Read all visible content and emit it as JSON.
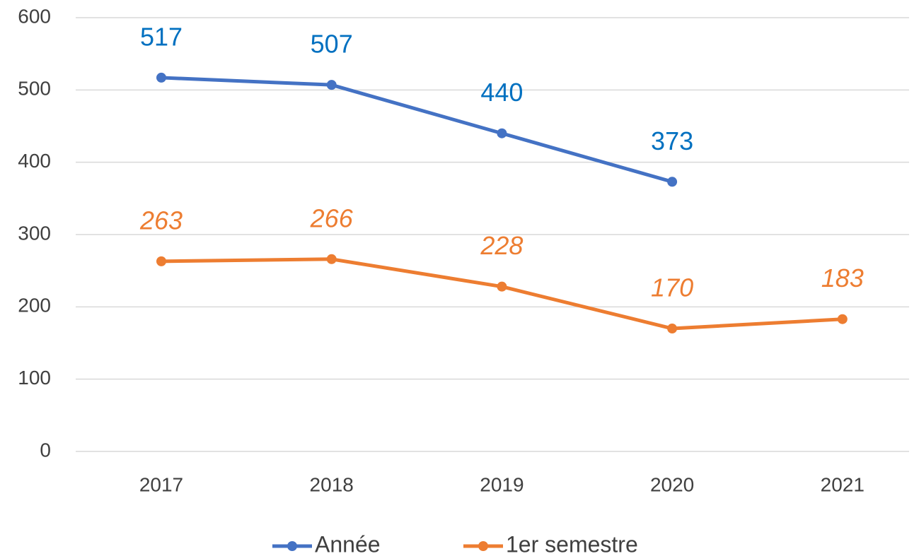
{
  "chart_data": {
    "type": "line",
    "categories": [
      "2017",
      "2018",
      "2019",
      "2020",
      "2021"
    ],
    "series": [
      {
        "name": "Année",
        "color": "#4472c4",
        "label_color": "#0070c0",
        "values": [
          517,
          507,
          440,
          373,
          null
        ]
      },
      {
        "name": "1er semestre",
        "color": "#ed7d31",
        "label_color": "#ed7d31",
        "label_style": "italic",
        "values": [
          263,
          266,
          228,
          170,
          183
        ]
      }
    ],
    "ylim": [
      0,
      600
    ],
    "yticks": [
      0,
      100,
      200,
      300,
      400,
      500,
      600
    ],
    "grid": true,
    "legend": "bottom"
  }
}
